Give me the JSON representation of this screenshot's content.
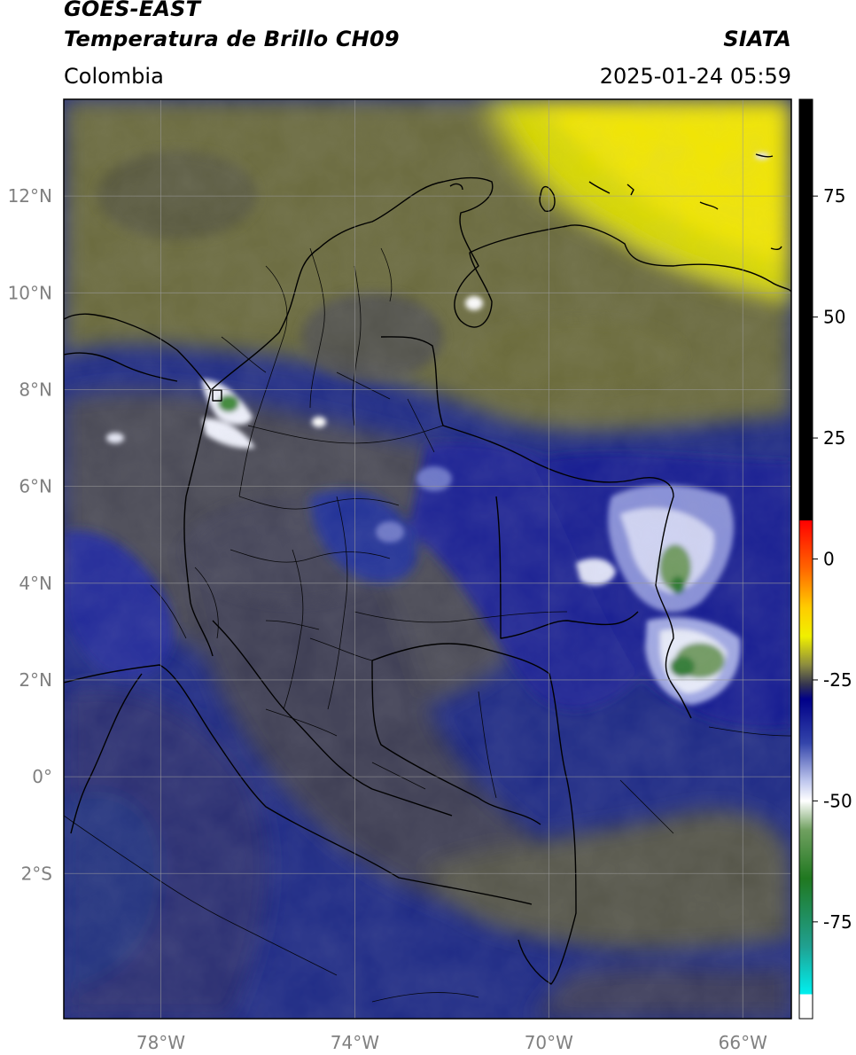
{
  "header": {
    "satellite": "GOES-EAST",
    "product": "Temperatura de Brillo CH09",
    "agency": "SIATA",
    "region": "Colombia",
    "datetime": "2025-01-24 05:59"
  },
  "map": {
    "lon_range": [
      -80,
      -65
    ],
    "lat_range": [
      -5,
      14
    ],
    "lat_ticks": [
      {
        "v": 12,
        "label": "12°N"
      },
      {
        "v": 10,
        "label": "10°N"
      },
      {
        "v": 8,
        "label": "8°N"
      },
      {
        "v": 6,
        "label": "6°N"
      },
      {
        "v": 4,
        "label": "4°N"
      },
      {
        "v": 2,
        "label": "2°N"
      },
      {
        "v": 0,
        "label": "0°"
      },
      {
        "v": -2,
        "label": "2°S"
      }
    ],
    "lon_ticks": [
      {
        "v": -78,
        "label": "78°W"
      },
      {
        "v": -74,
        "label": "74°W"
      },
      {
        "v": -70,
        "label": "70°W"
      },
      {
        "v": -66,
        "label": "66°W"
      }
    ],
    "grid": true
  },
  "colorbar": {
    "range": [
      -95,
      95
    ],
    "ticks": [
      {
        "v": 75,
        "label": "75"
      },
      {
        "v": 50,
        "label": "50"
      },
      {
        "v": 25,
        "label": "25"
      },
      {
        "v": 0,
        "label": "0"
      },
      {
        "v": -25,
        "label": "-25"
      },
      {
        "v": -50,
        "label": "-50"
      },
      {
        "v": -75,
        "label": "-75"
      }
    ],
    "stops": [
      {
        "v": 95,
        "color": "#000000"
      },
      {
        "v": 8,
        "color": "#000000"
      },
      {
        "v": 8,
        "color": "#ff0000"
      },
      {
        "v": -2,
        "color": "#ff6600"
      },
      {
        "v": -10,
        "color": "#ffcc00"
      },
      {
        "v": -16,
        "color": "#f0f000"
      },
      {
        "v": -22,
        "color": "#8a8a40"
      },
      {
        "v": -26,
        "color": "#333350"
      },
      {
        "v": -29,
        "color": "#000088"
      },
      {
        "v": -38,
        "color": "#3344aa"
      },
      {
        "v": -46,
        "color": "#c0c8ee"
      },
      {
        "v": -50,
        "color": "#ffffff"
      },
      {
        "v": -56,
        "color": "#70a060"
      },
      {
        "v": -66,
        "color": "#207820"
      },
      {
        "v": -80,
        "color": "#20a090"
      },
      {
        "v": -90,
        "color": "#00f0f0"
      },
      {
        "v": -90,
        "color": "#ffffff"
      },
      {
        "v": -95,
        "color": "#ffffff"
      }
    ]
  }
}
